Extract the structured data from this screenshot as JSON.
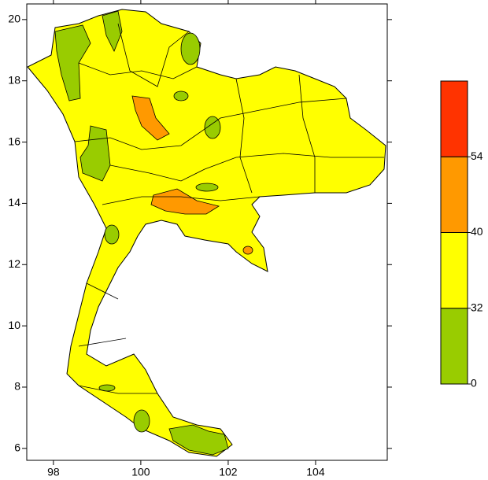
{
  "chart_data": {
    "type": "map",
    "xlim": [
      97.39,
      105.64
    ],
    "xticks": [
      98,
      100,
      102,
      104
    ],
    "ylim": [
      5.61,
      20.51
    ],
    "yticks": [
      6,
      8,
      10,
      12,
      14,
      16,
      18,
      20
    ],
    "colorbar": {
      "levels": [
        0,
        32,
        40,
        54
      ],
      "colors": [
        "#99cc00",
        "#ffff00",
        "#ff9900",
        "#ff3300"
      ]
    }
  }
}
